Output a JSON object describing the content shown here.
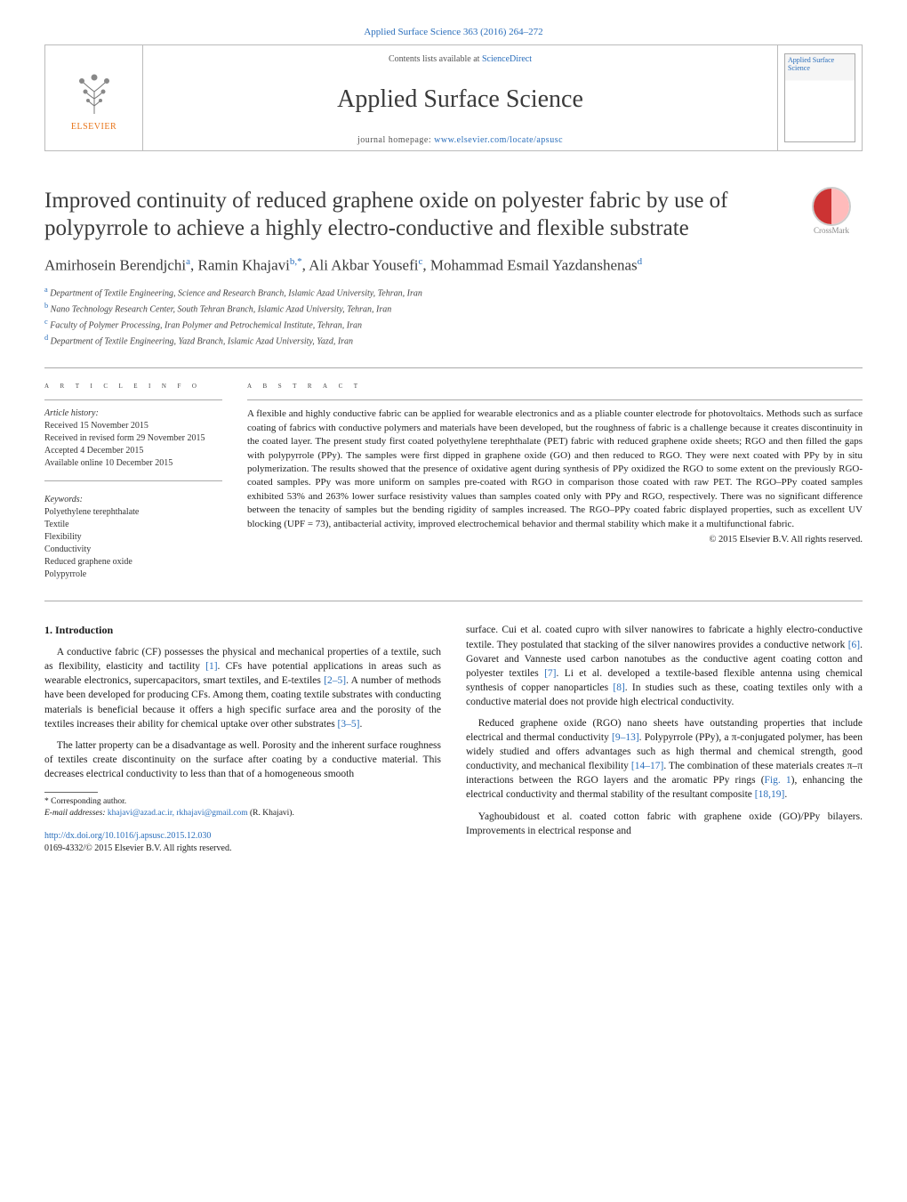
{
  "citation_header": "Applied Surface Science 363 (2016) 264–272",
  "banner": {
    "contents_prefix": "Contents lists available at ",
    "contents_link": "ScienceDirect",
    "journal_name": "Applied Surface Science",
    "homepage_prefix": "journal homepage: ",
    "homepage_url": "www.elsevier.com/locate/apsusc",
    "publisher_label": "ELSEVIER",
    "cover_title": "Applied Surface Science"
  },
  "crossmark_label": "CrossMark",
  "title": "Improved continuity of reduced graphene oxide on polyester fabric by use of polypyrrole to achieve a highly electro-conductive and flexible substrate",
  "authors_html": "Amirhosein Berendjchi<sup>a</sup>, Ramin Khajavi<sup>b,*</sup>, Ali Akbar Yousefi<sup>c</sup>, Mohammad Esmail Yazdanshenas<sup>d</sup>",
  "affiliations": [
    {
      "sup": "a",
      "text": "Department of Textile Engineering, Science and Research Branch, Islamic Azad University, Tehran, Iran"
    },
    {
      "sup": "b",
      "text": "Nano Technology Research Center, South Tehran Branch, Islamic Azad University, Tehran, Iran"
    },
    {
      "sup": "c",
      "text": "Faculty of Polymer Processing, Iran Polymer and Petrochemical Institute, Tehran, Iran"
    },
    {
      "sup": "d",
      "text": "Department of Textile Engineering, Yazd Branch, Islamic Azad University, Yazd, Iran"
    }
  ],
  "article_info_label": "a r t i c l e   i n f o",
  "abstract_label": "a b s t r a c t",
  "history": {
    "head": "Article history:",
    "received": "Received 15 November 2015",
    "revised": "Received in revised form 29 November 2015",
    "accepted": "Accepted 4 December 2015",
    "online": "Available online 10 December 2015"
  },
  "keywords_head": "Keywords:",
  "keywords": [
    "Polyethylene terephthalate",
    "Textile",
    "Flexibility",
    "Conductivity",
    "Reduced graphene oxide",
    "Polypyrrole"
  ],
  "abstract_text": "A flexible and highly conductive fabric can be applied for wearable electronics and as a pliable counter electrode for photovoltaics. Methods such as surface coating of fabrics with conductive polymers and materials have been developed, but the roughness of fabric is a challenge because it creates discontinuity in the coated layer. The present study first coated polyethylene terephthalate (PET) fabric with reduced graphene oxide sheets; RGO and then filled the gaps with polypyrrole (PPy). The samples were first dipped in graphene oxide (GO) and then reduced to RGO. They were next coated with PPy by in situ polymerization. The results showed that the presence of oxidative agent during synthesis of PPy oxidized the RGO to some extent on the previously RGO-coated samples. PPy was more uniform on samples pre-coated with RGO in comparison those coated with raw PET. The RGO–PPy coated samples exhibited 53% and 263% lower surface resistivity values than samples coated only with PPy and RGO, respectively. There was no significant difference between the tenacity of samples but the bending rigidity of samples increased. The RGO–PPy coated fabric displayed properties, such as excellent UV blocking (UPF = 73), antibacterial activity, improved electrochemical behavior and thermal stability which make it a multifunctional fabric.",
  "copyright": "© 2015 Elsevier B.V. All rights reserved.",
  "intro_heading": "1. Introduction",
  "paragraphs": {
    "p1_pre": "A conductive fabric (CF) possesses the physical and mechanical properties of a textile, such as flexibility, elasticity and tactility ",
    "p1_cite1": "[1]",
    "p1_mid": ". CFs have potential applications in areas such as wearable electronics, supercapacitors, smart textiles, and E-textiles ",
    "p1_cite2": "[2–5]",
    "p1_post": ". A number of methods have been developed for producing CFs. Among them, coating textile substrates with conducting materials is beneficial because it offers a high specific surface area and the porosity of the textiles increases their ability for chemical uptake over other substrates ",
    "p1_cite3": "[3–5]",
    "p1_end": ".",
    "p2": "The latter property can be a disadvantage as well. Porosity and the inherent surface roughness of textiles create discontinuity on the surface after coating by a conductive material. This decreases electrical conductivity to less than that of a homogeneous smooth ",
    "p3_pre": "surface. Cui et al. coated cupro with silver nanowires to fabricate a highly electro-conductive textile. They postulated that stacking of the silver nanowires provides a conductive network ",
    "p3_cite1": "[6]",
    "p3_mid1": ". Govaret and Vanneste used carbon nanotubes as the conductive agent coating cotton and polyester textiles ",
    "p3_cite2": "[7]",
    "p3_mid2": ". Li et al. developed a textile-based flexible antenna using chemical synthesis of copper nanoparticles ",
    "p3_cite3": "[8]",
    "p3_post": ". In studies such as these, coating textiles only with a conductive material does not provide high electrical conductivity.",
    "p4_pre": "Reduced graphene oxide (RGO) nano sheets have outstanding properties that include electrical and thermal conductivity ",
    "p4_cite1": "[9–13]",
    "p4_mid1": ". Polypyrrole (PPy), a π-conjugated polymer, has been widely studied and offers advantages such as high thermal and chemical strength, good conductivity, and mechanical flexibility ",
    "p4_cite2": "[14–17]",
    "p4_mid2": ". The combination of these materials creates π–π interactions between the RGO layers and the aromatic PPy rings (",
    "p4_fig": "Fig. 1",
    "p4_mid3": "), enhancing the electrical conductivity and thermal stability of the resultant composite ",
    "p4_cite3": "[18,19]",
    "p4_end": ".",
    "p5": "Yaghoubidoust et al. coated cotton fabric with graphene oxide (GO)/PPy bilayers. Improvements in electrical response and"
  },
  "footnote_marker": "* Corresponding author.",
  "footnote_email_label": "E-mail addresses:",
  "footnote_emails": "khajavi@azad.ac.ir, rkhajavi@gmail.com",
  "footnote_email_author": "(R. Khajavi).",
  "doi": "http://dx.doi.org/10.1016/j.apsusc.2015.12.030",
  "issn_line": "0169-4332/© 2015 Elsevier B.V. All rights reserved.",
  "colors": {
    "link": "#2a6ebb",
    "accent": "#e8751a",
    "text": "#1a1a1a",
    "rule": "#aaaaaa"
  }
}
